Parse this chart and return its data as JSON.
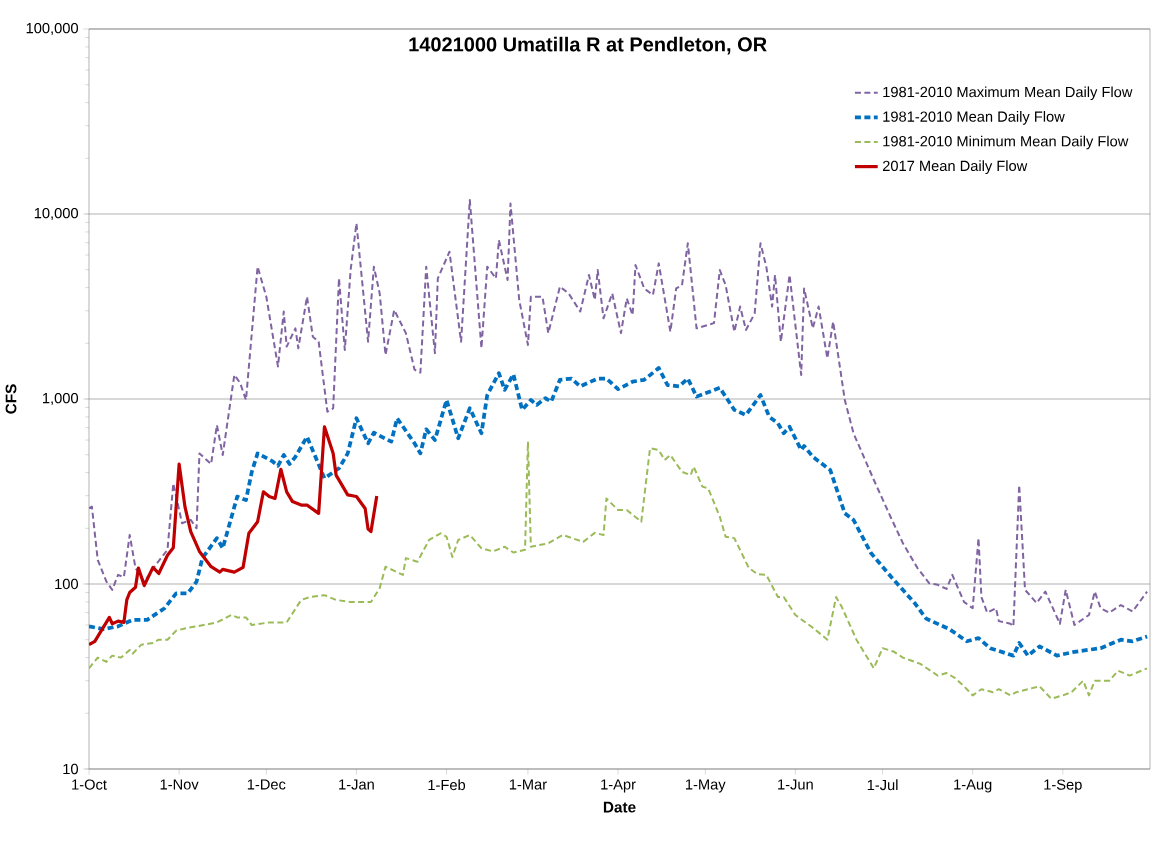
{
  "chart_data": {
    "type": "line",
    "title": "14021000  Umatilla R at Pendleton, OR",
    "xlabel": "Date",
    "ylabel": "CFS",
    "log": "y",
    "grid": "y",
    "legend": "top right",
    "marker": "none",
    "line_style": "dashed",
    "xlim": [
      "2016-10-01",
      "2017-10-01"
    ],
    "xticks": [
      {
        "value": "2016-10-01",
        "label": "1-Oct"
      },
      {
        "value": "2016-11-01",
        "label": "1-Nov"
      },
      {
        "value": "2016-12-01",
        "label": "1-Dec"
      },
      {
        "value": "2017-01-01",
        "label": "1-Jan"
      },
      {
        "value": "2017-02-01",
        "label": "1-Feb"
      },
      {
        "value": "2017-03-01",
        "label": "1-Mar"
      },
      {
        "value": "2017-04-01",
        "label": "1-Apr"
      },
      {
        "value": "2017-05-01",
        "label": "1-May"
      },
      {
        "value": "2017-06-01",
        "label": "1-Jun"
      },
      {
        "value": "2017-07-01",
        "label": "1-Jul"
      },
      {
        "value": "2017-08-01",
        "label": "1-Aug"
      },
      {
        "value": "2017-09-01",
        "label": "1-Sep"
      }
    ],
    "ylim": [
      10,
      100000
    ],
    "yticks": [
      {
        "value": 10,
        "label": "10"
      },
      {
        "value": 100,
        "label": "100"
      },
      {
        "value": 1000,
        "label": "1,000"
      },
      {
        "value": 10000,
        "label": "10,000"
      },
      {
        "value": 100000,
        "label": "100,000"
      }
    ],
    "series": [
      {
        "name": "1981-2010 Maximum Mean Daily Flow",
        "color": "#8064a2",
        "x": [
          "2016-10-01",
          "2016-10-02",
          "2016-10-04",
          "2016-10-07",
          "2016-10-09",
          "2016-10-11",
          "2016-10-13",
          "2016-10-15",
          "2016-10-17",
          "2016-10-20",
          "2016-10-24",
          "2016-10-28",
          "2016-10-30",
          "2016-11-02",
          "2016-11-05",
          "2016-11-07",
          "2016-11-08",
          "2016-11-12",
          "2016-11-14",
          "2016-11-16",
          "2016-11-20",
          "2016-11-22",
          "2016-11-24",
          "2016-11-28",
          "2016-12-01",
          "2016-12-05",
          "2016-12-07",
          "2016-12-08",
          "2016-12-11",
          "2016-12-12",
          "2016-12-15",
          "2016-12-17",
          "2016-12-19",
          "2016-12-22",
          "2016-12-24",
          "2016-12-26",
          "2016-12-28",
          "2016-12-30",
          "2017-01-01",
          "2017-01-05",
          "2017-01-07",
          "2017-01-09",
          "2017-01-11",
          "2017-01-14",
          "2017-01-18",
          "2017-01-21",
          "2017-01-23",
          "2017-01-25",
          "2017-01-28",
          "2017-01-29",
          "2017-02-02",
          "2017-02-06",
          "2017-02-09",
          "2017-02-13",
          "2017-02-15",
          "2017-02-18",
          "2017-02-19",
          "2017-02-22",
          "2017-02-23",
          "2017-02-26",
          "2017-03-01",
          "2017-03-02",
          "2017-03-06",
          "2017-03-08",
          "2017-03-12",
          "2017-03-15",
          "2017-03-19",
          "2017-03-22",
          "2017-03-24",
          "2017-03-25",
          "2017-03-27",
          "2017-03-30",
          "2017-04-02",
          "2017-04-04",
          "2017-04-06",
          "2017-04-07",
          "2017-04-10",
          "2017-04-13",
          "2017-04-15",
          "2017-04-19",
          "2017-04-21",
          "2017-04-23",
          "2017-04-25",
          "2017-04-28",
          "2017-05-04",
          "2017-05-06",
          "2017-05-08",
          "2017-05-11",
          "2017-05-13",
          "2017-05-15",
          "2017-05-18",
          "2017-05-20",
          "2017-05-22",
          "2017-05-24",
          "2017-05-25",
          "2017-05-27",
          "2017-05-30",
          "2017-06-03",
          "2017-06-04",
          "2017-06-07",
          "2017-06-09",
          "2017-06-12",
          "2017-06-14",
          "2017-06-18",
          "2017-06-21",
          "2017-06-28",
          "2017-07-04",
          "2017-07-08",
          "2017-07-13",
          "2017-07-17",
          "2017-07-20",
          "2017-07-23",
          "2017-07-25",
          "2017-07-29",
          "2017-08-01",
          "2017-08-03",
          "2017-08-04",
          "2017-08-06",
          "2017-08-09",
          "2017-08-10",
          "2017-08-14",
          "2017-08-15",
          "2017-08-17",
          "2017-08-19",
          "2017-08-23",
          "2017-08-26",
          "2017-08-31",
          "2017-09-02",
          "2017-09-05",
          "2017-09-10",
          "2017-09-12",
          "2017-09-14",
          "2017-09-17",
          "2017-09-21",
          "2017-09-25",
          "2017-09-30"
        ],
        "values": [
          257,
          262,
          135,
          103,
          93,
          112,
          109,
          184,
          122,
          103,
          127,
          153,
          350,
          213,
          222,
          200,
          508,
          445,
          723,
          498,
          1350,
          1220,
          988,
          5190,
          3570,
          1500,
          2970,
          1920,
          2410,
          1880,
          3570,
          2170,
          2040,
          854,
          891,
          4490,
          1840,
          4980,
          8910,
          2040,
          5190,
          3720,
          1730,
          3030,
          2270,
          1440,
          1390,
          5190,
          1770,
          4490,
          6250,
          2040,
          11900,
          1880,
          5190,
          4490,
          7230,
          4400,
          11400,
          3430,
          1960,
          3570,
          3570,
          2270,
          4050,
          3720,
          2970,
          4680,
          3430,
          4980,
          2730,
          3720,
          2270,
          3500,
          2840,
          5300,
          3960,
          3650,
          5410,
          2310,
          3960,
          4130,
          6950,
          2410,
          2570,
          4980,
          4130,
          2310,
          3160,
          2360,
          2900,
          6950,
          5190,
          3160,
          4680,
          2040,
          4680,
          1350,
          3960,
          2410,
          3160,
          1660,
          2620,
          988,
          653,
          365,
          226,
          166,
          122,
          101,
          99,
          94,
          112,
          80,
          74,
          177,
          85,
          70,
          74,
          63,
          61,
          59,
          343,
          93,
          79,
          91,
          61,
          93,
          60,
          68,
          91,
          74,
          70,
          77,
          71,
          91
        ]
      },
      {
        "name": "1981-2010 Mean Daily Flow",
        "color": "#0070c0",
        "x": [
          "2016-10-01",
          "2016-10-06",
          "2016-10-11",
          "2016-10-16",
          "2016-10-21",
          "2016-10-27",
          "2016-10-31",
          "2016-11-04",
          "2016-11-07",
          "2016-11-09",
          "2016-11-14",
          "2016-11-16",
          "2016-11-21",
          "2016-11-24",
          "2016-11-26",
          "2016-11-28",
          "2016-12-03",
          "2016-12-05",
          "2016-12-07",
          "2016-12-09",
          "2016-12-11",
          "2016-12-15",
          "2016-12-21",
          "2016-12-26",
          "2016-12-29",
          "2017-01-01",
          "2017-01-05",
          "2017-01-07",
          "2017-01-13",
          "2017-01-15",
          "2017-01-21",
          "2017-01-23",
          "2017-01-25",
          "2017-01-28",
          "2017-02-01",
          "2017-02-05",
          "2017-02-09",
          "2017-02-13",
          "2017-02-15",
          "2017-02-19",
          "2017-02-21",
          "2017-02-24",
          "2017-02-27",
          "2017-03-02",
          "2017-03-04",
          "2017-03-07",
          "2017-03-09",
          "2017-03-12",
          "2017-03-16",
          "2017-03-19",
          "2017-03-25",
          "2017-03-28",
          "2017-04-01",
          "2017-04-06",
          "2017-04-10",
          "2017-04-15",
          "2017-04-18",
          "2017-04-22",
          "2017-04-25",
          "2017-04-28",
          "2017-05-06",
          "2017-05-11",
          "2017-05-15",
          "2017-05-20",
          "2017-05-23",
          "2017-05-26",
          "2017-05-28",
          "2017-05-30",
          "2017-06-03",
          "2017-06-04",
          "2017-06-07",
          "2017-06-13",
          "2017-06-18",
          "2017-06-21",
          "2017-06-27",
          "2017-07-04",
          "2017-07-12",
          "2017-07-16",
          "2017-07-24",
          "2017-07-30",
          "2017-08-03",
          "2017-08-07",
          "2017-08-15",
          "2017-08-17",
          "2017-08-20",
          "2017-08-24",
          "2017-08-30",
          "2017-09-05",
          "2017-09-14",
          "2017-09-21",
          "2017-09-25",
          "2017-09-30"
        ],
        "values": [
          59,
          57,
          59,
          64,
          64,
          74,
          89,
          89,
          103,
          138,
          177,
          156,
          297,
          284,
          404,
          508,
          462,
          435,
          498,
          445,
          487,
          625,
          373,
          422,
          508,
          787,
          576,
          657,
          588,
          787,
          576,
          508,
          686,
          600,
          988,
          613,
          891,
          653,
          1050,
          1380,
          1120,
          1360,
          873,
          988,
          929,
          1010,
          967,
          1270,
          1290,
          1170,
          1290,
          1290,
          1130,
          1240,
          1270,
          1470,
          1190,
          1170,
          1290,
          1030,
          1150,
          873,
          820,
          1050,
          802,
          739,
          653,
          708,
          530,
          557,
          487,
          413,
          241,
          222,
          147,
          109,
          79,
          65,
          57,
          49,
          51,
          45,
          41,
          48,
          41,
          46,
          41,
          43,
          45,
          50,
          49,
          52
        ]
      },
      {
        "name": "1981-2010 Minimum Mean Daily Flow",
        "color": "#9bbb59",
        "x": [
          "2016-10-01",
          "2016-10-04",
          "2016-10-07",
          "2016-10-09",
          "2016-10-12",
          "2016-10-15",
          "2016-10-16",
          "2016-10-19",
          "2016-10-23",
          "2016-10-25",
          "2016-10-28",
          "2016-10-31",
          "2016-11-04",
          "2016-11-07",
          "2016-11-14",
          "2016-11-19",
          "2016-11-21",
          "2016-11-24",
          "2016-11-26",
          "2016-12-02",
          "2016-12-08",
          "2016-12-13",
          "2016-12-16",
          "2016-12-21",
          "2016-12-25",
          "2016-12-30",
          "2017-01-06",
          "2017-01-09",
          "2017-01-11",
          "2017-01-17",
          "2017-01-18",
          "2017-01-22",
          "2017-01-26",
          "2017-01-30",
          "2017-02-01",
          "2017-02-03",
          "2017-02-05",
          "2017-02-09",
          "2017-02-13",
          "2017-02-17",
          "2017-02-21",
          "2017-02-24",
          "2017-02-28",
          "2017-03-01",
          "2017-03-02",
          "2017-03-08",
          "2017-03-13",
          "2017-03-20",
          "2017-03-24",
          "2017-03-27",
          "2017-03-28",
          "2017-04-01",
          "2017-04-04",
          "2017-04-09",
          "2017-04-12",
          "2017-04-15",
          "2017-04-17",
          "2017-04-19",
          "2017-04-23",
          "2017-04-26",
          "2017-04-27",
          "2017-04-30",
          "2017-05-02",
          "2017-05-06",
          "2017-05-08",
          "2017-05-11",
          "2017-05-16",
          "2017-05-19",
          "2017-05-22",
          "2017-05-26",
          "2017-05-28",
          "2017-06-01",
          "2017-06-07",
          "2017-06-12",
          "2017-06-15",
          "2017-06-17",
          "2017-06-22",
          "2017-06-28",
          "2017-07-01",
          "2017-07-05",
          "2017-07-08",
          "2017-07-14",
          "2017-07-20",
          "2017-07-23",
          "2017-07-26",
          "2017-07-29",
          "2017-08-01",
          "2017-08-04",
          "2017-08-08",
          "2017-08-10",
          "2017-08-14",
          "2017-08-16",
          "2017-08-20",
          "2017-08-24",
          "2017-08-28",
          "2017-09-01",
          "2017-09-04",
          "2017-09-08",
          "2017-09-10",
          "2017-09-12",
          "2017-09-17",
          "2017-09-20",
          "2017-09-24",
          "2017-09-30"
        ],
        "values": [
          35,
          40,
          38,
          41,
          40,
          44,
          42,
          47,
          48,
          50,
          50,
          56,
          58,
          59,
          62,
          68,
          66,
          66,
          60,
          62,
          62,
          82,
          85,
          87,
          82,
          80,
          80,
          95,
          124,
          112,
          138,
          132,
          173,
          188,
          180,
          140,
          173,
          184,
          156,
          150,
          159,
          148,
          153,
          588,
          159,
          166,
          184,
          169,
          189,
          184,
          290,
          251,
          251,
          217,
          542,
          530,
          468,
          498,
          404,
          388,
          431,
          336,
          329,
          231,
          180,
          177,
          122,
          113,
          112,
          85,
          85,
          68,
          58,
          50,
          85,
          75,
          50,
          35,
          45,
          43,
          40,
          37,
          32,
          33,
          31,
          28,
          25,
          27,
          26,
          27,
          25,
          26,
          27,
          28,
          24,
          25,
          26,
          30,
          25,
          30,
          30,
          34,
          32,
          35
        ]
      },
      {
        "name": "2017 Mean Daily Flow",
        "color": "#c00000",
        "line_style": "solid",
        "x": [
          "2016-10-01",
          "2016-10-03",
          "2016-10-08",
          "2016-10-09",
          "2016-10-11",
          "2016-10-13",
          "2016-10-14",
          "2016-10-15",
          "2016-10-17",
          "2016-10-18",
          "2016-10-20",
          "2016-10-23",
          "2016-10-25",
          "2016-10-28",
          "2016-10-30",
          "2016-11-01",
          "2016-11-03",
          "2016-11-05",
          "2016-11-08",
          "2016-11-12",
          "2016-11-15",
          "2016-11-16",
          "2016-11-20",
          "2016-11-23",
          "2016-11-25",
          "2016-11-28",
          "2016-11-30",
          "2016-12-02",
          "2016-12-04",
          "2016-12-06",
          "2016-12-08",
          "2016-12-10",
          "2016-12-13",
          "2016-12-15",
          "2016-12-19",
          "2016-12-21",
          "2016-12-24",
          "2016-12-25",
          "2016-12-29",
          "2017-01-01",
          "2017-01-04",
          "2017-01-05",
          "2017-01-06",
          "2017-01-08"
        ],
        "values": [
          47,
          49,
          66,
          61,
          63,
          62,
          82,
          90,
          96,
          122,
          98,
          123,
          114,
          143,
          157,
          445,
          262,
          192,
          150,
          124,
          116,
          120,
          116,
          123,
          188,
          217,
          315,
          297,
          290,
          417,
          315,
          279,
          267,
          267,
          241,
          708,
          508,
          388,
          303,
          297,
          256,
          198,
          192,
          299
        ]
      }
    ]
  }
}
